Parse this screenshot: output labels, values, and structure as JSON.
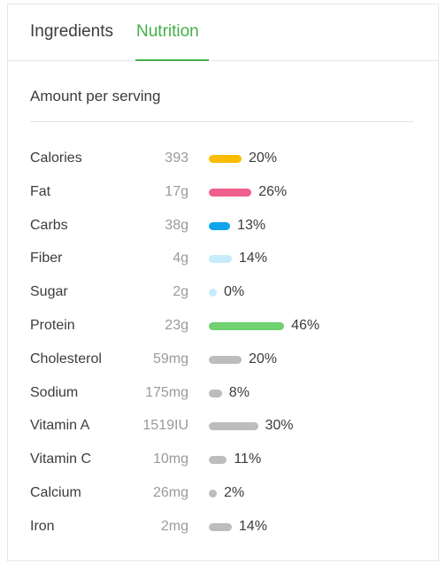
{
  "tabs": [
    {
      "label": "Ingredients",
      "active": false
    },
    {
      "label": "Nutrition",
      "active": true
    }
  ],
  "accent_color": "#43b04a",
  "amount_label": "Amount per serving",
  "nutrients": [
    {
      "name": "Calories",
      "amount": "393",
      "percent_label": "20%",
      "percent": 20,
      "color": "#fbbc05"
    },
    {
      "name": "Fat",
      "amount": "17g",
      "percent_label": "26%",
      "percent": 26,
      "color": "#ee5f8c"
    },
    {
      "name": "Carbs",
      "amount": "38g",
      "percent_label": "13%",
      "percent": 13,
      "color": "#0ea5ec"
    },
    {
      "name": "Fiber",
      "amount": "4g",
      "percent_label": "14%",
      "percent": 14,
      "color": "#c6ecfb"
    },
    {
      "name": "Sugar",
      "amount": "2g",
      "percent_label": "0%",
      "percent": 0,
      "color": "#c6ecfb"
    },
    {
      "name": "Protein",
      "amount": "23g",
      "percent_label": "46%",
      "percent": 46,
      "color": "#6fd16f"
    },
    {
      "name": "Cholesterol",
      "amount": "59mg",
      "percent_label": "20%",
      "percent": 20,
      "color": "#bdbdbd"
    },
    {
      "name": "Sodium",
      "amount": "175mg",
      "percent_label": "8%",
      "percent": 8,
      "color": "#bdbdbd"
    },
    {
      "name": "Vitamin A",
      "amount": "1519IU",
      "percent_label": "30%",
      "percent": 30,
      "color": "#bdbdbd"
    },
    {
      "name": "Vitamin C",
      "amount": "10mg",
      "percent_label": "11%",
      "percent": 11,
      "color": "#bdbdbd"
    },
    {
      "name": "Calcium",
      "amount": "26mg",
      "percent_label": "2%",
      "percent": 2,
      "color": "#bdbdbd"
    },
    {
      "name": "Iron",
      "amount": "2mg",
      "percent_label": "14%",
      "percent": 14,
      "color": "#bdbdbd"
    }
  ]
}
